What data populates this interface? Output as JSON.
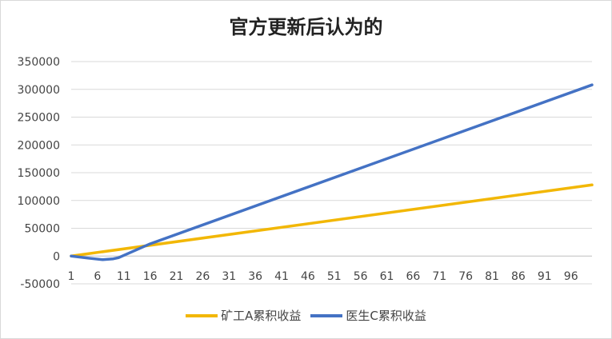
{
  "chart_data": {
    "type": "line",
    "title": "官方更新后认为的",
    "xlabel": "",
    "ylabel": "",
    "x": [
      1,
      6,
      11,
      16,
      21,
      26,
      31,
      36,
      41,
      46,
      51,
      56,
      61,
      66,
      71,
      76,
      81,
      86,
      91,
      96
    ],
    "x_tick_labels": [
      "1",
      "6",
      "11",
      "16",
      "21",
      "26",
      "31",
      "36",
      "41",
      "46",
      "51",
      "56",
      "61",
      "66",
      "71",
      "76",
      "81",
      "86",
      "91",
      "96"
    ],
    "x_range": [
      1,
      100
    ],
    "ylim": [
      -50000,
      350000
    ],
    "y_ticks": [
      -50000,
      0,
      50000,
      100000,
      150000,
      200000,
      250000,
      300000,
      350000
    ],
    "y_tick_labels": [
      "-50000",
      "0",
      "50000",
      "100000",
      "150000",
      "200000",
      "250000",
      "300000",
      "350000"
    ],
    "grid": true,
    "legend_position": "bottom",
    "series": [
      {
        "name": "矿工A累积收益",
        "color": "#F2B705",
        "points": [
          [
            1,
            0
          ],
          [
            100,
            128000
          ]
        ]
      },
      {
        "name": "医生C累积收益",
        "color": "#4472C4",
        "points": [
          [
            1,
            0
          ],
          [
            4,
            -3500
          ],
          [
            7,
            -6500
          ],
          [
            9,
            -5000
          ],
          [
            10,
            -3000
          ],
          [
            16,
            22000
          ],
          [
            100,
            308000
          ]
        ]
      }
    ]
  }
}
